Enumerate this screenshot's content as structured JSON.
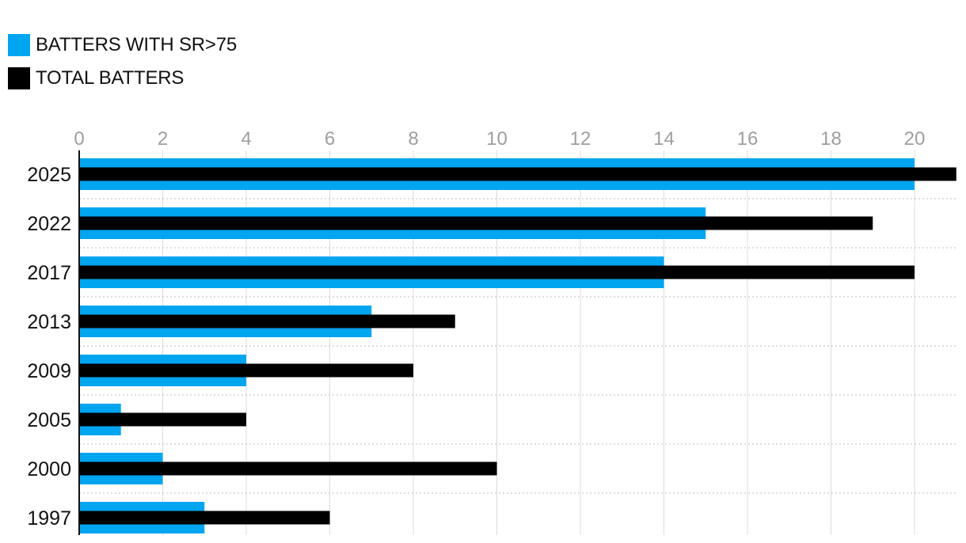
{
  "legend": [
    {
      "label": "BATTERS WITH SR>75",
      "color": "#00a5ef"
    },
    {
      "label": "TOTAL BATTERS",
      "color": "#000000"
    }
  ],
  "chart_data": {
    "type": "bar",
    "orientation": "horizontal",
    "categories": [
      "2025",
      "2022",
      "2017",
      "2013",
      "2009",
      "2005",
      "2000",
      "1997"
    ],
    "series": [
      {
        "name": "BATTERS WITH SR>75",
        "color": "#00a5ef",
        "values": [
          20,
          15,
          14,
          7,
          4,
          1,
          2,
          3
        ]
      },
      {
        "name": "TOTAL BATTERS",
        "color": "#000000",
        "values": [
          21,
          19,
          20,
          9,
          8,
          4,
          10,
          6
        ]
      }
    ],
    "x_ticks": [
      0,
      2,
      4,
      6,
      8,
      10,
      12,
      14,
      16,
      18,
      20
    ],
    "xlim": [
      0,
      21
    ],
    "grid": true,
    "legend_position": "top-left",
    "title": "",
    "xlabel": "",
    "ylabel": ""
  }
}
